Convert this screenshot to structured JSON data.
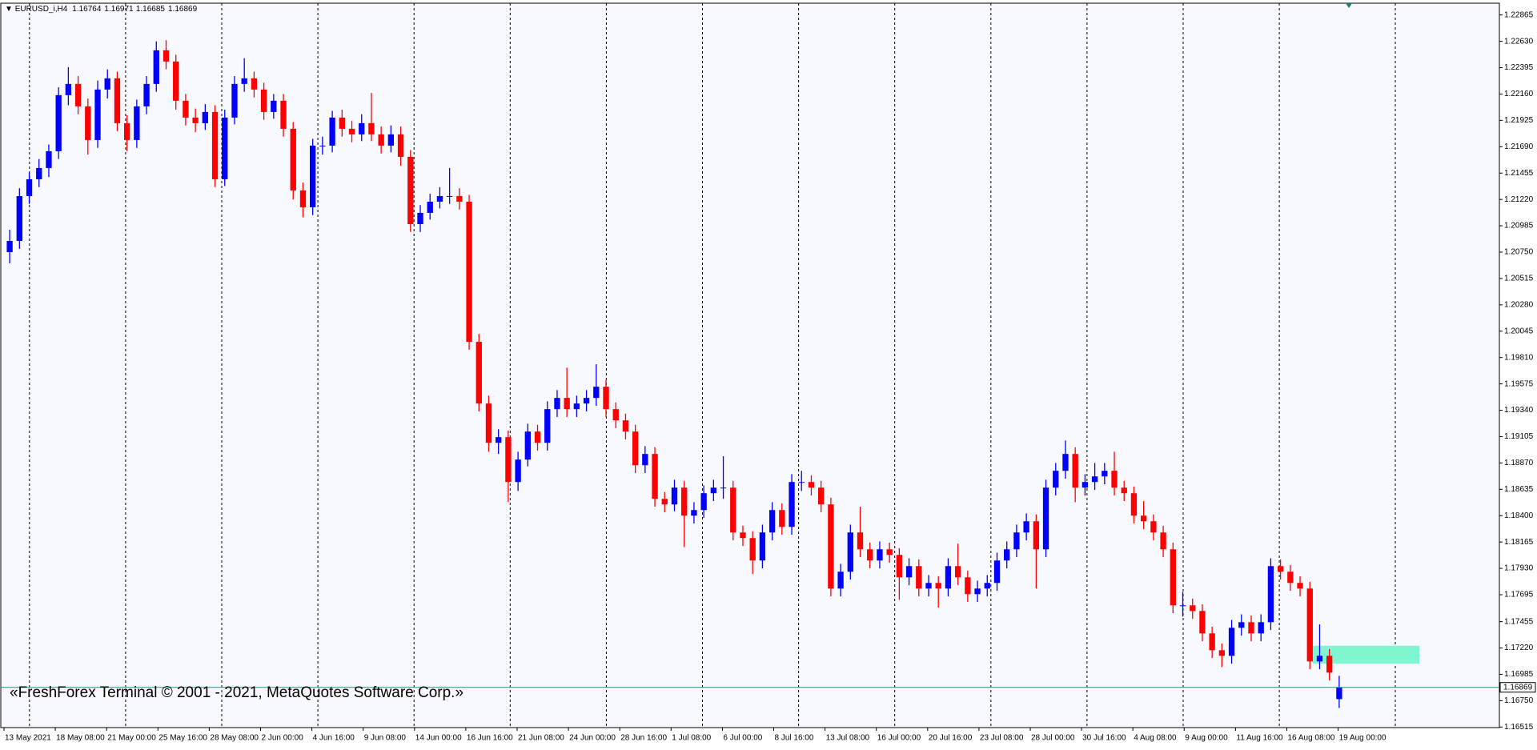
{
  "chart_data": {
    "type": "candlestick",
    "symbol": "EURUSD_i,H4",
    "copyright": "«FreshForex Terminal © 2001 - 2021, MetaQuotes Software Corp.»",
    "bull_color": "#0000ff",
    "bear_color": "#ff0000",
    "zone_color": "#7ff5d2",
    "price_line_color": "#2a8a8a",
    "zone": [
      1.1708,
      1.1724
    ],
    "ylim": [
      1.1651,
      1.2297
    ],
    "yticks": [
      1.22865,
      {
        "value": 1.2263,
        "label": "1.22630"
      },
      1.22395,
      {
        "value": 1.2216,
        "label": "1.22160"
      },
      1.21925,
      {
        "value": 1.2169,
        "label": "1.21690"
      },
      1.21455,
      {
        "value": 1.2122,
        "label": "1.21220"
      },
      1.20985,
      {
        "value": 1.2075,
        "label": "1.20750"
      },
      1.20515,
      {
        "value": 1.2028,
        "label": "1.20280"
      },
      1.20045,
      {
        "value": 1.1981,
        "label": "1.19810"
      },
      1.19575,
      {
        "value": 1.1934,
        "label": "1.19340"
      },
      1.19105,
      {
        "value": 1.1887,
        "label": "1.18870"
      },
      1.18635,
      {
        "value": 1.184,
        "label": "1.18400"
      },
      1.18165,
      {
        "value": 1.1793,
        "label": "1.17930"
      },
      1.17695,
      1.17455,
      {
        "value": 1.1722,
        "label": "1.17220"
      },
      1.16985,
      {
        "value": 1.1675,
        "label": "1.16750"
      },
      1.16515
    ],
    "x_labels": [
      "13 May 2021",
      "18 May 08:00",
      "21 May 00:00",
      "25 May 16:00",
      "28 May 08:00",
      "2 Jun 00:00",
      "4 Jun 16:00",
      "9 Jun 08:00",
      "14 Jun 00:00",
      "16 Jun 16:00",
      "21 Jun 08:00",
      "24 Jun 00:00",
      "28 Jun 16:00",
      "1 Jul 08:00",
      "6 Jul 00:00",
      "8 Jul 16:00",
      "13 Jul 08:00",
      "16 Jul 00:00",
      "20 Jul 16:00",
      "23 Jul 08:00",
      "28 Jul 00:00",
      "30 Jul 16:00",
      "4 Aug 08:00",
      "9 Aug 00:00",
      "11 Aug 16:00",
      "16 Aug 08:00",
      "19 Aug 00:00"
    ],
    "candles": [
      [
        1.2075,
        1.2095,
        1.2065,
        1.2085
      ],
      [
        1.2085,
        1.2132,
        1.2078,
        1.2125
      ],
      [
        1.2125,
        1.2146,
        1.2118,
        1.214
      ],
      [
        1.214,
        1.2158,
        1.2133,
        1.215
      ],
      [
        1.215,
        1.2171,
        1.2142,
        1.2165
      ],
      [
        1.2165,
        1.2222,
        1.2158,
        1.2215
      ],
      [
        1.2215,
        1.224,
        1.2206,
        1.2225
      ],
      [
        1.2225,
        1.2232,
        1.2198,
        1.2205
      ],
      [
        1.2205,
        1.2212,
        1.2162,
        1.2175
      ],
      [
        1.2175,
        1.2228,
        1.2168,
        1.222
      ],
      [
        1.222,
        1.2238,
        1.2212,
        1.223
      ],
      [
        1.223,
        1.2236,
        1.2183,
        1.219
      ],
      [
        1.219,
        1.2197,
        1.2165,
        1.2175
      ],
      [
        1.2175,
        1.2211,
        1.2168,
        1.2205
      ],
      [
        1.2205,
        1.2232,
        1.2198,
        1.2225
      ],
      [
        1.2225,
        1.2263,
        1.2218,
        1.2255
      ],
      [
        1.2255,
        1.2264,
        1.2238,
        1.2245
      ],
      [
        1.2245,
        1.2251,
        1.2202,
        1.221
      ],
      [
        1.221,
        1.2216,
        1.2188,
        1.2195
      ],
      [
        1.2195,
        1.2203,
        1.2182,
        1.219
      ],
      [
        1.219,
        1.2207,
        1.2184,
        1.22
      ],
      [
        1.22,
        1.2206,
        1.2133,
        1.214
      ],
      [
        1.214,
        1.2202,
        1.2134,
        1.2195
      ],
      [
        1.2195,
        1.2232,
        1.2189,
        1.2225
      ],
      [
        1.2225,
        1.2248,
        1.2218,
        1.223
      ],
      [
        1.223,
        1.2236,
        1.2213,
        1.222
      ],
      [
        1.222,
        1.2226,
        1.2193,
        1.22
      ],
      [
        1.22,
        1.2216,
        1.2194,
        1.221
      ],
      [
        1.221,
        1.2216,
        1.2178,
        1.2185
      ],
      [
        1.2185,
        1.2191,
        1.2122,
        1.213
      ],
      [
        1.213,
        1.2137,
        1.2106,
        1.2115
      ],
      [
        1.2115,
        1.2176,
        1.2108,
        1.217
      ],
      [
        1.217,
        1.2178,
        1.2162,
        1.217
      ],
      [
        1.217,
        1.2201,
        1.2164,
        1.2195
      ],
      [
        1.2195,
        1.2202,
        1.2178,
        1.2185
      ],
      [
        1.2185,
        1.2192,
        1.2173,
        1.218
      ],
      [
        1.218,
        1.2198,
        1.2174,
        1.219
      ],
      [
        1.219,
        1.2217,
        1.2174,
        1.218
      ],
      [
        1.218,
        1.2187,
        1.2163,
        1.217
      ],
      [
        1.217,
        1.2188,
        1.2164,
        1.218
      ],
      [
        1.218,
        1.2187,
        1.2152,
        1.216
      ],
      [
        1.216,
        1.2166,
        1.2093,
        1.21
      ],
      [
        1.21,
        1.2117,
        1.2093,
        1.211
      ],
      [
        1.211,
        1.2127,
        1.2104,
        1.212
      ],
      [
        1.212,
        1.2133,
        1.2114,
        1.2125
      ],
      [
        1.2125,
        1.215,
        1.2118,
        1.2125
      ],
      [
        1.2125,
        1.2132,
        1.2113,
        1.212
      ],
      [
        1.212,
        1.2126,
        1.1988,
        1.1995
      ],
      [
        1.1995,
        1.2002,
        1.1933,
        1.194
      ],
      [
        1.194,
        1.1947,
        1.1897,
        1.1905
      ],
      [
        1.1905,
        1.1917,
        1.1895,
        1.191
      ],
      [
        1.191,
        1.1916,
        1.1852,
        1.187
      ],
      [
        1.187,
        1.1897,
        1.1862,
        1.189
      ],
      [
        1.189,
        1.1922,
        1.1884,
        1.1915
      ],
      [
        1.1915,
        1.1921,
        1.1898,
        1.1905
      ],
      [
        1.1905,
        1.1942,
        1.1898,
        1.1935
      ],
      [
        1.1935,
        1.1952,
        1.1928,
        1.1945
      ],
      [
        1.1945,
        1.1972,
        1.1928,
        1.1935
      ],
      [
        1.1935,
        1.1947,
        1.1928,
        1.194
      ],
      [
        1.194,
        1.1952,
        1.1933,
        1.1945
      ],
      [
        1.1945,
        1.1975,
        1.1938,
        1.1955
      ],
      [
        1.1955,
        1.1961,
        1.1928,
        1.1935
      ],
      [
        1.1935,
        1.1941,
        1.1918,
        1.1925
      ],
      [
        1.1925,
        1.1931,
        1.1908,
        1.1915
      ],
      [
        1.1915,
        1.1921,
        1.1878,
        1.1885
      ],
      [
        1.1885,
        1.1902,
        1.1878,
        1.1895
      ],
      [
        1.1895,
        1.1901,
        1.1848,
        1.1855
      ],
      [
        1.1855,
        1.1861,
        1.1843,
        1.185
      ],
      [
        1.185,
        1.1872,
        1.1844,
        1.1865
      ],
      [
        1.1865,
        1.1871,
        1.1812,
        1.184
      ],
      [
        1.184,
        1.1852,
        1.1833,
        1.1845
      ],
      [
        1.1845,
        1.1867,
        1.1838,
        1.186
      ],
      [
        1.186,
        1.1872,
        1.1853,
        1.1865
      ],
      [
        1.1865,
        1.1893,
        1.1855,
        1.1865
      ],
      [
        1.1865,
        1.1871,
        1.1818,
        1.1825
      ],
      [
        1.1825,
        1.1831,
        1.1813,
        1.182
      ],
      [
        1.182,
        1.1826,
        1.1788,
        1.18
      ],
      [
        1.18,
        1.1832,
        1.1793,
        1.1825
      ],
      [
        1.1825,
        1.1852,
        1.1818,
        1.1845
      ],
      [
        1.1845,
        1.1851,
        1.1823,
        1.183
      ],
      [
        1.183,
        1.1877,
        1.1823,
        1.187
      ],
      [
        1.187,
        1.188,
        1.1862,
        1.187
      ],
      [
        1.187,
        1.1876,
        1.1858,
        1.1865
      ],
      [
        1.1865,
        1.1871,
        1.1843,
        1.185
      ],
      [
        1.185,
        1.1856,
        1.1768,
        1.1775
      ],
      [
        1.1775,
        1.1797,
        1.1768,
        1.179
      ],
      [
        1.179,
        1.1832,
        1.1783,
        1.1825
      ],
      [
        1.1825,
        1.1848,
        1.1803,
        1.181
      ],
      [
        1.181,
        1.1816,
        1.1793,
        1.18
      ],
      [
        1.18,
        1.1817,
        1.1793,
        1.181
      ],
      [
        1.181,
        1.1816,
        1.1798,
        1.1805
      ],
      [
        1.1805,
        1.1811,
        1.1765,
        1.1785
      ],
      [
        1.1785,
        1.1802,
        1.1778,
        1.1795
      ],
      [
        1.1795,
        1.1801,
        1.1768,
        1.1775
      ],
      [
        1.1775,
        1.1787,
        1.1768,
        1.178
      ],
      [
        1.178,
        1.1786,
        1.1758,
        1.1775
      ],
      [
        1.1775,
        1.1802,
        1.1768,
        1.1795
      ],
      [
        1.1795,
        1.1815,
        1.1778,
        1.1785
      ],
      [
        1.1785,
        1.1791,
        1.1763,
        1.177
      ],
      [
        1.177,
        1.1782,
        1.1763,
        1.1775
      ],
      [
        1.1775,
        1.1787,
        1.1768,
        1.178
      ],
      [
        1.178,
        1.1807,
        1.1773,
        1.18
      ],
      [
        1.18,
        1.1817,
        1.1793,
        1.181
      ],
      [
        1.181,
        1.1832,
        1.1803,
        1.1825
      ],
      [
        1.1825,
        1.1842,
        1.1818,
        1.1835
      ],
      [
        1.1835,
        1.1841,
        1.1775,
        1.181
      ],
      [
        1.181,
        1.1872,
        1.1803,
        1.1865
      ],
      [
        1.1865,
        1.1887,
        1.1858,
        1.188
      ],
      [
        1.188,
        1.1907,
        1.1873,
        1.1895
      ],
      [
        1.1895,
        1.1901,
        1.1852,
        1.1865
      ],
      [
        1.1865,
        1.1877,
        1.1858,
        1.187
      ],
      [
        1.187,
        1.1887,
        1.1863,
        1.1875
      ],
      [
        1.1875,
        1.1887,
        1.1868,
        1.188
      ],
      [
        1.188,
        1.1897,
        1.1858,
        1.1865
      ],
      [
        1.1865,
        1.1871,
        1.1853,
        1.186
      ],
      [
        1.186,
        1.1866,
        1.1833,
        1.184
      ],
      [
        1.184,
        1.1853,
        1.1828,
        1.1835
      ],
      [
        1.1835,
        1.1841,
        1.1818,
        1.1825
      ],
      [
        1.1825,
        1.1831,
        1.1803,
        1.181
      ],
      [
        1.181,
        1.1816,
        1.1753,
        1.176
      ],
      [
        1.176,
        1.1772,
        1.175,
        1.176
      ],
      [
        1.176,
        1.1766,
        1.1748,
        1.1755
      ],
      [
        1.1755,
        1.1761,
        1.1728,
        1.1735
      ],
      [
        1.1735,
        1.1741,
        1.1713,
        1.172
      ],
      [
        1.172,
        1.1726,
        1.1705,
        1.1715
      ],
      [
        1.1715,
        1.1747,
        1.1708,
        1.174
      ],
      [
        1.174,
        1.1752,
        1.1733,
        1.1745
      ],
      [
        1.1745,
        1.1751,
        1.1728,
        1.1735
      ],
      [
        1.1735,
        1.1752,
        1.1728,
        1.1745
      ],
      [
        1.1745,
        1.1802,
        1.1738,
        1.1795
      ],
      [
        1.1795,
        1.1801,
        1.1783,
        1.179
      ],
      [
        1.179,
        1.1796,
        1.1773,
        1.178
      ],
      [
        1.178,
        1.1786,
        1.1768,
        1.1775
      ],
      [
        1.1775,
        1.1781,
        1.1703,
        1.171
      ],
      [
        1.171,
        1.1743,
        1.1703,
        1.1715
      ],
      [
        1.1715,
        1.1721,
        1.1693,
        1.17
      ],
      [
        1.16764,
        1.16971,
        1.16685,
        1.16869
      ]
    ]
  }
}
